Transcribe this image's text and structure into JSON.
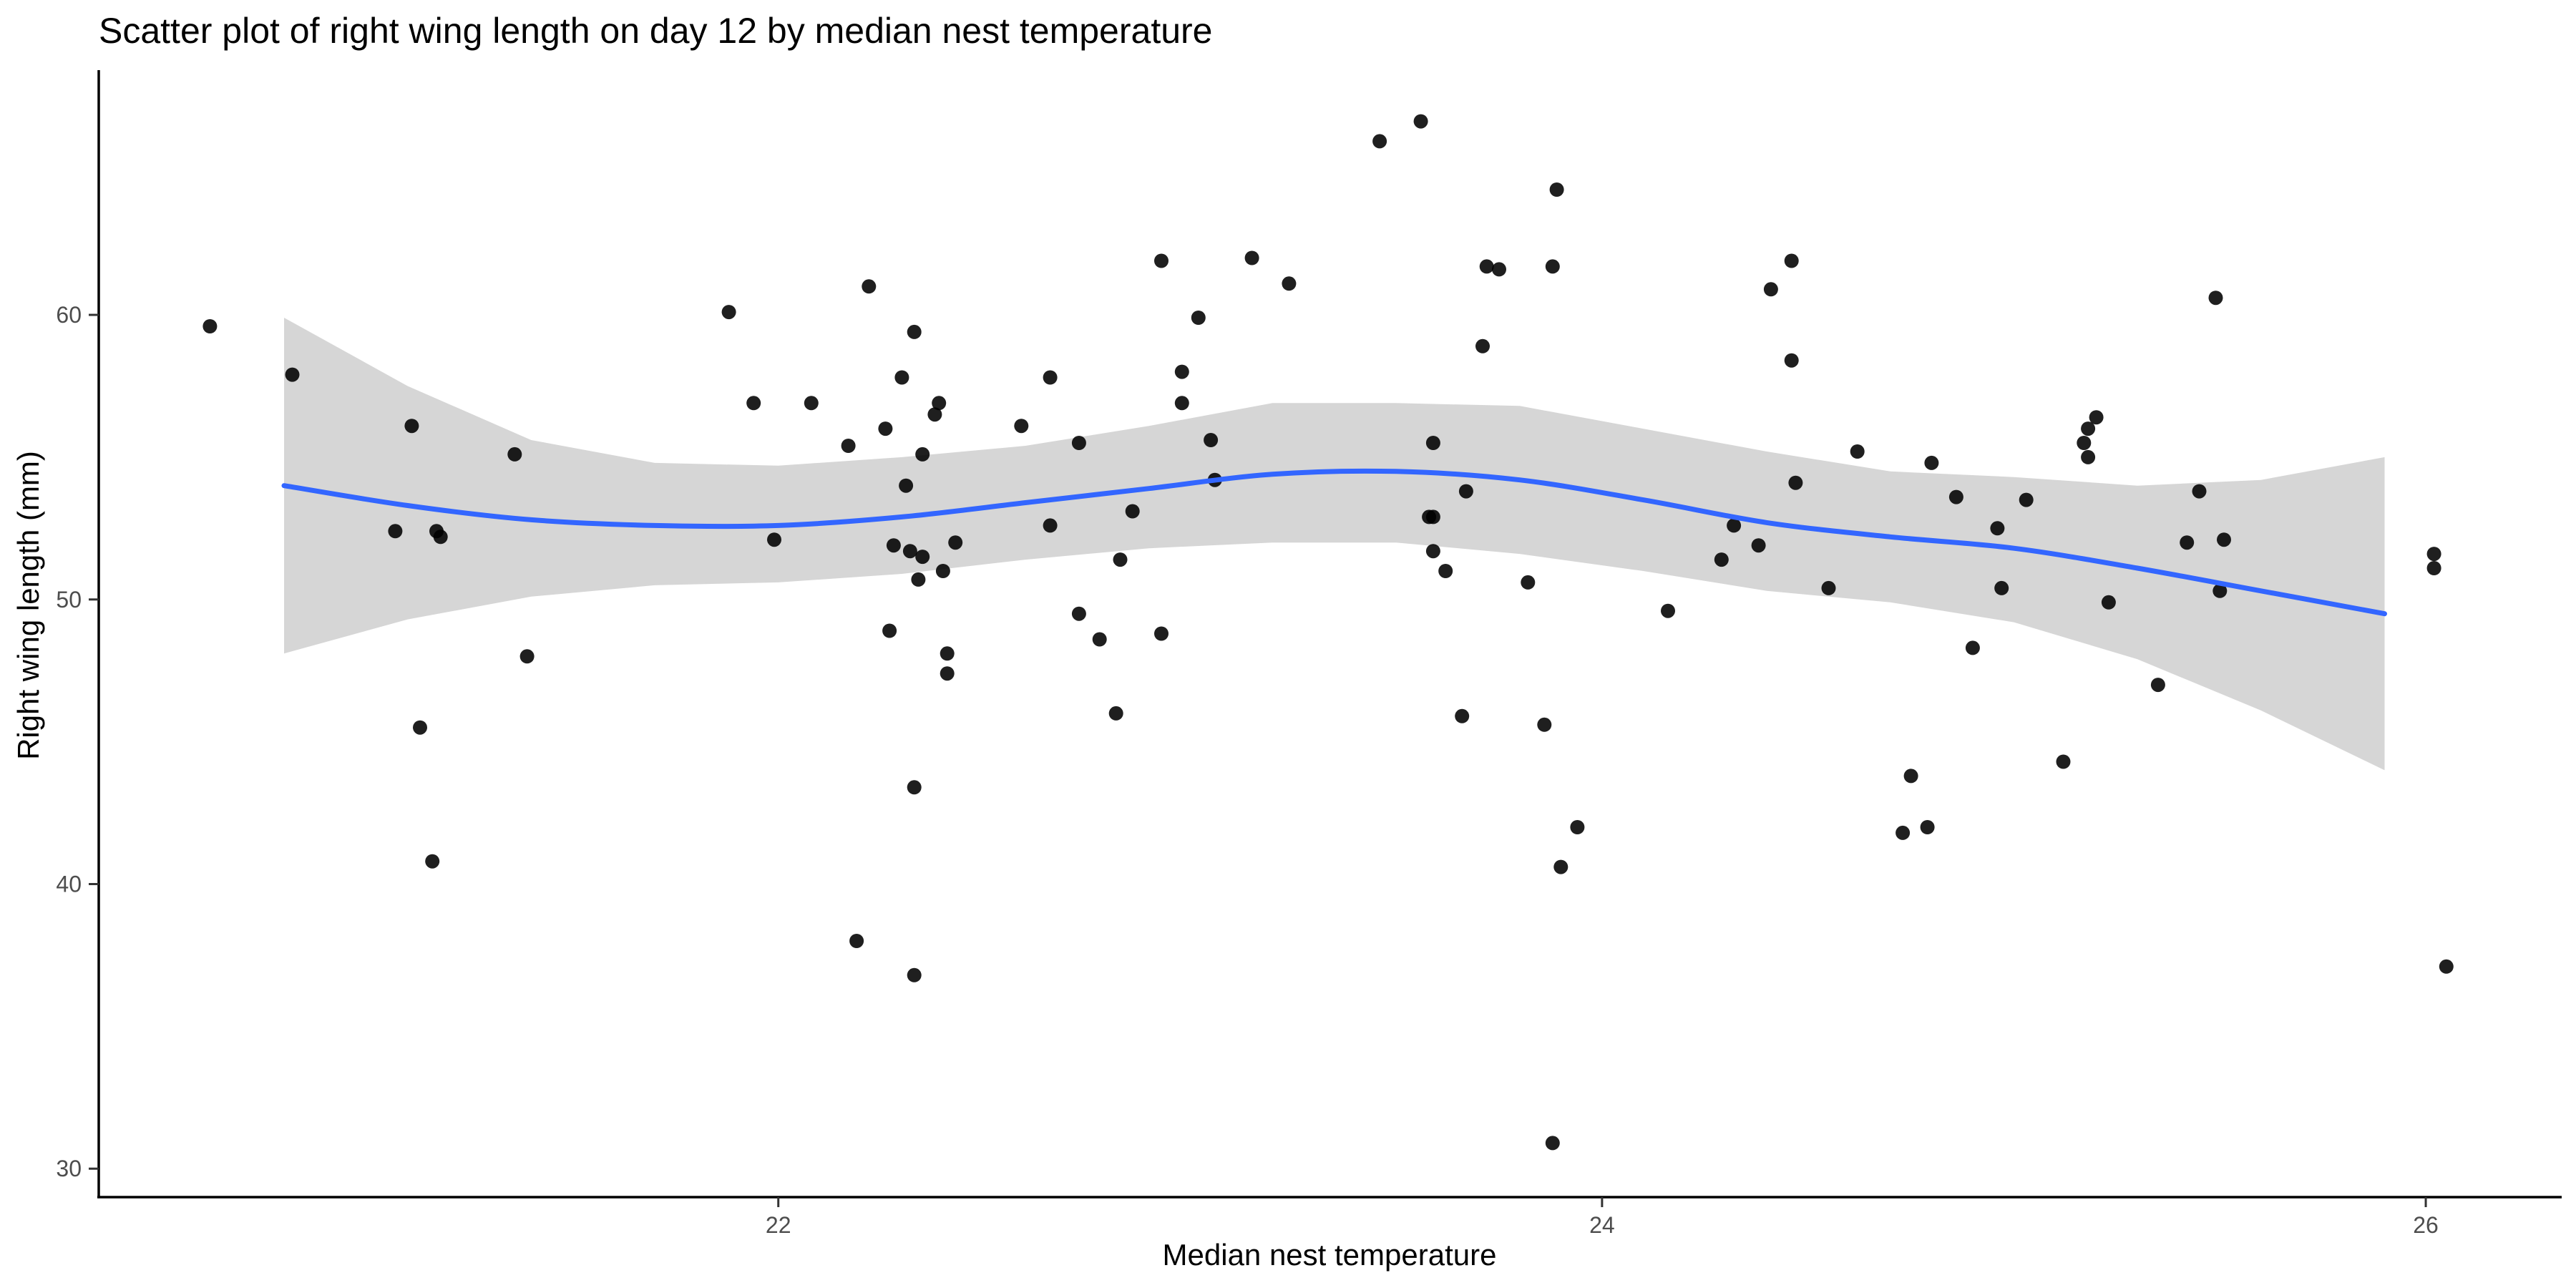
{
  "chart_data": {
    "type": "scatter",
    "title": "Scatter plot of right wing length on day 12 by median nest temperature",
    "xlabel": "Median nest temperature",
    "ylabel": "Right wing length (mm)",
    "xlim": [
      20.35,
      26.33
    ],
    "ylim": [
      29.0,
      68.6
    ],
    "x_ticks": [
      22,
      24,
      26
    ],
    "x_tick_labels": [
      "22",
      "24",
      "26"
    ],
    "y_ticks": [
      30,
      40,
      50,
      60
    ],
    "y_tick_labels": [
      "30",
      "40",
      "50",
      "60"
    ],
    "grid": false,
    "legend": "none",
    "points": [
      {
        "x": 20.62,
        "y": 59.6
      },
      {
        "x": 20.82,
        "y": 57.9
      },
      {
        "x": 21.07,
        "y": 52.4
      },
      {
        "x": 21.11,
        "y": 56.1
      },
      {
        "x": 21.13,
        "y": 45.5
      },
      {
        "x": 21.16,
        "y": 40.8
      },
      {
        "x": 21.17,
        "y": 52.4
      },
      {
        "x": 21.18,
        "y": 52.2
      },
      {
        "x": 21.36,
        "y": 55.1
      },
      {
        "x": 21.39,
        "y": 48.0
      },
      {
        "x": 21.88,
        "y": 60.1
      },
      {
        "x": 21.94,
        "y": 56.9
      },
      {
        "x": 21.99,
        "y": 52.1
      },
      {
        "x": 22.08,
        "y": 56.9
      },
      {
        "x": 22.17,
        "y": 55.4
      },
      {
        "x": 22.19,
        "y": 38.0
      },
      {
        "x": 22.22,
        "y": 61.0
      },
      {
        "x": 22.26,
        "y": 56.0
      },
      {
        "x": 22.27,
        "y": 48.9
      },
      {
        "x": 22.28,
        "y": 51.9
      },
      {
        "x": 22.3,
        "y": 57.8
      },
      {
        "x": 22.31,
        "y": 54.0
      },
      {
        "x": 22.32,
        "y": 51.7
      },
      {
        "x": 22.33,
        "y": 43.4
      },
      {
        "x": 22.33,
        "y": 59.4
      },
      {
        "x": 22.33,
        "y": 36.8
      },
      {
        "x": 22.34,
        "y": 50.7
      },
      {
        "x": 22.35,
        "y": 51.5
      },
      {
        "x": 22.35,
        "y": 55.1
      },
      {
        "x": 22.38,
        "y": 56.5
      },
      {
        "x": 22.39,
        "y": 56.9
      },
      {
        "x": 22.4,
        "y": 51.0
      },
      {
        "x": 22.41,
        "y": 48.1
      },
      {
        "x": 22.41,
        "y": 47.4
      },
      {
        "x": 22.43,
        "y": 52.0
      },
      {
        "x": 22.59,
        "y": 56.1
      },
      {
        "x": 22.66,
        "y": 52.6
      },
      {
        "x": 22.66,
        "y": 57.8
      },
      {
        "x": 22.73,
        "y": 55.5
      },
      {
        "x": 22.73,
        "y": 49.5
      },
      {
        "x": 22.78,
        "y": 48.6
      },
      {
        "x": 22.82,
        "y": 46.0
      },
      {
        "x": 22.83,
        "y": 51.4
      },
      {
        "x": 22.86,
        "y": 53.1
      },
      {
        "x": 22.93,
        "y": 48.8
      },
      {
        "x": 22.93,
        "y": 61.9
      },
      {
        "x": 22.98,
        "y": 58.0
      },
      {
        "x": 22.98,
        "y": 56.9
      },
      {
        "x": 23.02,
        "y": 59.9
      },
      {
        "x": 23.05,
        "y": 55.6
      },
      {
        "x": 23.06,
        "y": 54.2
      },
      {
        "x": 23.15,
        "y": 62.0
      },
      {
        "x": 23.24,
        "y": 61.1
      },
      {
        "x": 23.46,
        "y": 66.1
      },
      {
        "x": 23.56,
        "y": 66.8
      },
      {
        "x": 23.58,
        "y": 52.9
      },
      {
        "x": 23.59,
        "y": 52.9
      },
      {
        "x": 23.59,
        "y": 51.7
      },
      {
        "x": 23.59,
        "y": 55.5
      },
      {
        "x": 23.62,
        "y": 51.0
      },
      {
        "x": 23.66,
        "y": 45.9
      },
      {
        "x": 23.67,
        "y": 53.8
      },
      {
        "x": 23.71,
        "y": 58.9
      },
      {
        "x": 23.72,
        "y": 61.7
      },
      {
        "x": 23.75,
        "y": 61.6
      },
      {
        "x": 23.82,
        "y": 50.6
      },
      {
        "x": 23.86,
        "y": 45.6
      },
      {
        "x": 23.88,
        "y": 30.9
      },
      {
        "x": 23.88,
        "y": 61.7
      },
      {
        "x": 23.89,
        "y": 64.4
      },
      {
        "x": 23.9,
        "y": 40.6
      },
      {
        "x": 23.94,
        "y": 42.0
      },
      {
        "x": 24.16,
        "y": 49.6
      },
      {
        "x": 24.29,
        "y": 51.4
      },
      {
        "x": 24.32,
        "y": 52.6
      },
      {
        "x": 24.38,
        "y": 51.9
      },
      {
        "x": 24.41,
        "y": 60.9
      },
      {
        "x": 24.46,
        "y": 58.4
      },
      {
        "x": 24.46,
        "y": 61.9
      },
      {
        "x": 24.47,
        "y": 54.1
      },
      {
        "x": 24.55,
        "y": 50.4
      },
      {
        "x": 24.62,
        "y": 55.2
      },
      {
        "x": 24.73,
        "y": 41.8
      },
      {
        "x": 24.75,
        "y": 43.8
      },
      {
        "x": 24.79,
        "y": 42.0
      },
      {
        "x": 24.8,
        "y": 54.8
      },
      {
        "x": 24.86,
        "y": 53.6
      },
      {
        "x": 24.9,
        "y": 48.3
      },
      {
        "x": 24.96,
        "y": 52.5
      },
      {
        "x": 24.97,
        "y": 50.4
      },
      {
        "x": 25.03,
        "y": 53.5
      },
      {
        "x": 25.12,
        "y": 44.3
      },
      {
        "x": 25.17,
        "y": 55.5
      },
      {
        "x": 25.18,
        "y": 56.0
      },
      {
        "x": 25.18,
        "y": 55.0
      },
      {
        "x": 25.2,
        "y": 56.4
      },
      {
        "x": 25.23,
        "y": 49.9
      },
      {
        "x": 25.35,
        "y": 47.0
      },
      {
        "x": 25.42,
        "y": 52.0
      },
      {
        "x": 25.45,
        "y": 53.8
      },
      {
        "x": 25.49,
        "y": 60.6
      },
      {
        "x": 25.5,
        "y": 50.3
      },
      {
        "x": 25.51,
        "y": 52.1
      },
      {
        "x": 26.02,
        "y": 51.6
      },
      {
        "x": 26.02,
        "y": 51.1
      },
      {
        "x": 26.05,
        "y": 37.1
      }
    ],
    "smooth": {
      "color": "#3366ff",
      "band_color": "#d6d6d6",
      "x": [
        20.8,
        21.1,
        21.4,
        21.7,
        22.0,
        22.3,
        22.6,
        22.9,
        23.2,
        23.5,
        23.8,
        24.1,
        24.4,
        24.7,
        25.0,
        25.3,
        25.6,
        25.9
      ],
      "y": [
        54.0,
        53.3,
        52.8,
        52.6,
        52.6,
        52.9,
        53.4,
        53.9,
        54.4,
        54.5,
        54.2,
        53.5,
        52.7,
        52.2,
        51.8,
        51.1,
        50.3,
        49.5
      ],
      "lower": [
        48.1,
        49.3,
        50.1,
        50.5,
        50.6,
        50.9,
        51.4,
        51.8,
        52.0,
        52.0,
        51.6,
        51.0,
        50.3,
        49.9,
        49.2,
        47.9,
        46.1,
        44.0
      ],
      "upper": [
        59.9,
        57.5,
        55.6,
        54.8,
        54.7,
        55.0,
        55.4,
        56.1,
        56.9,
        56.9,
        56.8,
        56.0,
        55.2,
        54.5,
        54.3,
        54.0,
        54.2,
        55.0
      ]
    },
    "point_color": "#000000"
  }
}
